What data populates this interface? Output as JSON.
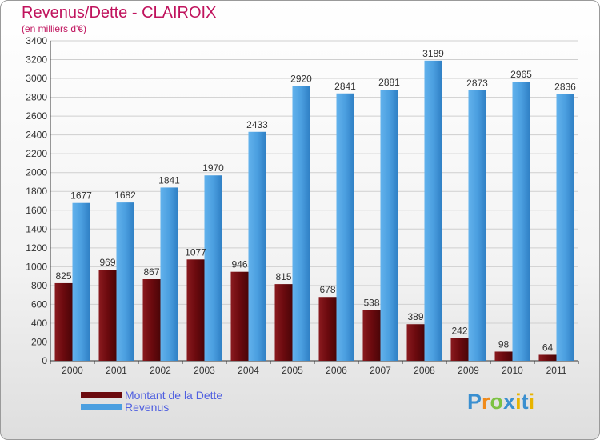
{
  "title": "Revenus/Dette - CLAIROIX",
  "subtitle": "(en milliers d'€)",
  "legend": [
    {
      "label": "Montant de la Dette",
      "color": "#6b0a0e"
    },
    {
      "label": "Revenus",
      "color": "#4b9fe0"
    }
  ],
  "logo": {
    "text": "Proxiti",
    "letters": [
      "P",
      "r",
      "o",
      "x",
      "i",
      "t",
      "i"
    ],
    "colors": [
      "#3a8fd0",
      "#f08a1a",
      "#7cc242",
      "#3a8fd0",
      "#e8b400",
      "#3a8fd0",
      "#e8b400"
    ]
  },
  "chart_data": {
    "type": "bar",
    "title": "Revenus/Dette - CLAIROIX",
    "ylabel": "(en milliers d'€)",
    "xlabel": "",
    "ylim": [
      0,
      3400
    ],
    "ytick_step": 200,
    "grid": true,
    "legend_position": "bottom-left",
    "categories": [
      "2000",
      "2001",
      "2002",
      "2003",
      "2004",
      "2005",
      "2006",
      "2007",
      "2008",
      "2009",
      "2010",
      "2011"
    ],
    "series": [
      {
        "name": "Montant de la Dette",
        "color": "#6b0a0e",
        "values": [
          825,
          969,
          867,
          1077,
          946,
          815,
          678,
          538,
          389,
          242,
          98,
          64
        ]
      },
      {
        "name": "Revenus",
        "color": "#4b9fe0",
        "values": [
          1677,
          1682,
          1841,
          1970,
          2433,
          2920,
          2841,
          2881,
          3189,
          2873,
          2965,
          2836
        ]
      }
    ]
  }
}
